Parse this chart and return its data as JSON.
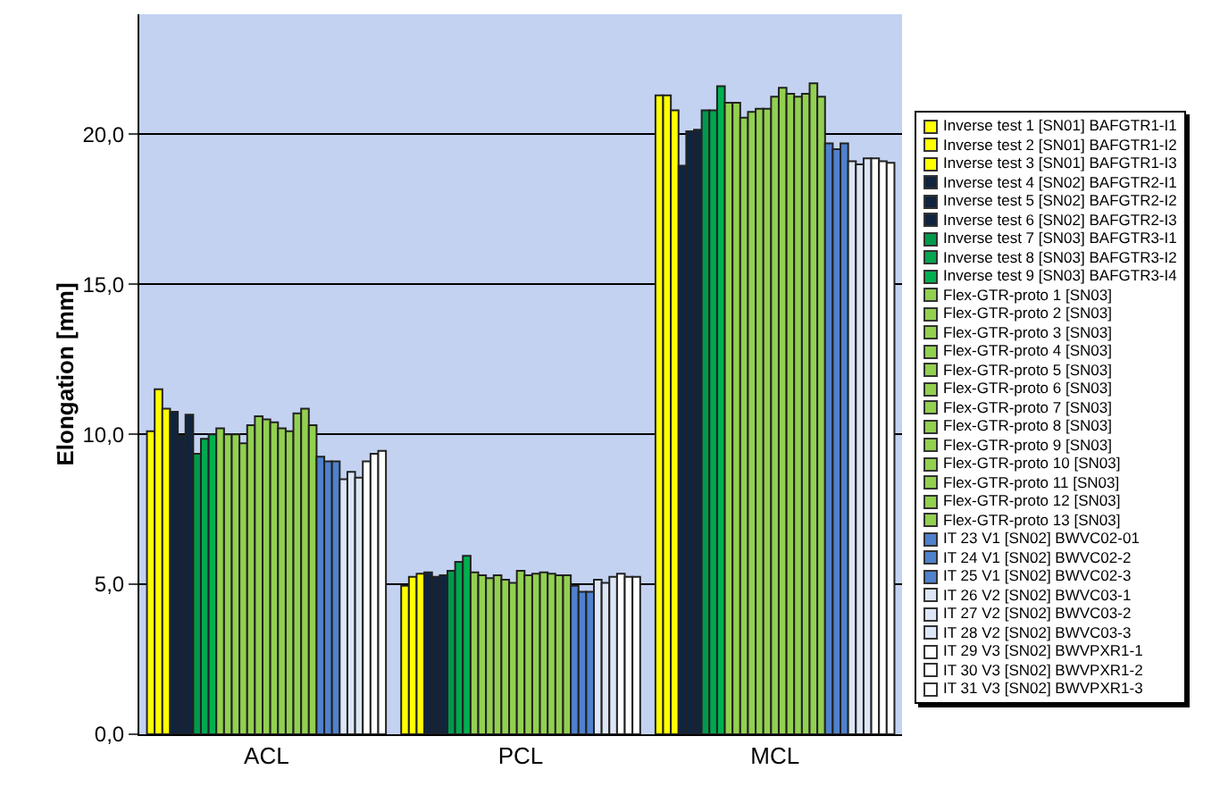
{
  "chart_data": {
    "type": "bar",
    "ylabel": "Elongation [mm]",
    "categories": [
      "ACL",
      "PCL",
      "MCL"
    ],
    "ylim": [
      0,
      24
    ],
    "yticks": [
      {
        "value": 0,
        "label": "0,0"
      },
      {
        "value": 5,
        "label": "5,0"
      },
      {
        "value": 10,
        "label": "10,0"
      },
      {
        "value": 15,
        "label": "15,0"
      },
      {
        "value": 20,
        "label": "20,0"
      }
    ],
    "grid": "y",
    "legend": "right",
    "series": [
      {
        "name": "Inverse test 1 [SN01] BAFGTR1-I1",
        "color": "#ffff00",
        "values": [
          10.1,
          4.95,
          21.3
        ]
      },
      {
        "name": "Inverse test 2 [SN01] BAFGTR1-I2",
        "color": "#ffff00",
        "values": [
          11.5,
          5.25,
          21.3
        ]
      },
      {
        "name": "Inverse test 3 [SN01] BAFGTR1-I3",
        "color": "#ffff00",
        "values": [
          10.85,
          5.35,
          20.8
        ]
      },
      {
        "name": "Inverse test 4 [SN02] BAFGTR2-I1",
        "color": "#10243f",
        "values": [
          10.75,
          5.4,
          18.95
        ]
      },
      {
        "name": "Inverse test 5 [SN02] BAFGTR2-I2",
        "color": "#10243f",
        "values": [
          9.95,
          5.25,
          20.1
        ]
      },
      {
        "name": "Inverse test 6 [SN02] BAFGTR2-I3",
        "color": "#10243f",
        "values": [
          10.65,
          5.3,
          20.15
        ]
      },
      {
        "name": "Inverse test 7 [SN03] BAFGTR3-I1",
        "color": "#00994c",
        "values": [
          9.35,
          5.45,
          20.8
        ]
      },
      {
        "name": "Inverse test 8 [SN03] BAFGTR3-I2",
        "color": "#00a650",
        "values": [
          9.85,
          5.75,
          20.8
        ]
      },
      {
        "name": "Inverse test 9 [SN03] BAFGTR3-I4",
        "color": "#00b050",
        "values": [
          10.0,
          5.95,
          21.6
        ]
      },
      {
        "name": "Flex-GTR-proto  1 [SN03]",
        "color": "#92d050",
        "values": [
          10.2,
          5.4,
          21.05
        ]
      },
      {
        "name": "Flex-GTR-proto  2 [SN03]",
        "color": "#92d050",
        "values": [
          10.0,
          5.3,
          21.05
        ]
      },
      {
        "name": "Flex-GTR-proto  3 [SN03]",
        "color": "#92d050",
        "values": [
          10.0,
          5.2,
          20.55
        ]
      },
      {
        "name": "Flex-GTR-proto  4 [SN03]",
        "color": "#92d050",
        "values": [
          9.7,
          5.3,
          20.75
        ]
      },
      {
        "name": "Flex-GTR-proto  5 [SN03]",
        "color": "#92d050",
        "values": [
          10.3,
          5.15,
          20.85
        ]
      },
      {
        "name": "Flex-GTR-proto  6 [SN03]",
        "color": "#92d050",
        "values": [
          10.6,
          5.05,
          20.85
        ]
      },
      {
        "name": "Flex-GTR-proto  7 [SN03]",
        "color": "#92d050",
        "values": [
          10.5,
          5.45,
          21.25
        ]
      },
      {
        "name": "Flex-GTR-proto  8 [SN03]",
        "color": "#92d050",
        "values": [
          10.4,
          5.3,
          21.55
        ]
      },
      {
        "name": "Flex-GTR-proto  9 [SN03]",
        "color": "#92d050",
        "values": [
          10.2,
          5.35,
          21.35
        ]
      },
      {
        "name": "Flex-GTR-proto  10 [SN03]",
        "color": "#92d050",
        "values": [
          10.1,
          5.4,
          21.25
        ]
      },
      {
        "name": "Flex-GTR-proto  11 [SN03]",
        "color": "#92d050",
        "values": [
          10.7,
          5.35,
          21.35
        ]
      },
      {
        "name": "Flex-GTR-proto  12 [SN03]",
        "color": "#92d050",
        "values": [
          10.85,
          5.3,
          21.7
        ]
      },
      {
        "name": "Flex-GTR-proto  13 [SN03]",
        "color": "#92d050",
        "values": [
          10.3,
          5.3,
          21.25
        ]
      },
      {
        "name": "IT 23 V1 [SN02] BWVC02-01",
        "color": "#4f81cd",
        "values": [
          9.25,
          4.95,
          19.7
        ]
      },
      {
        "name": "IT 24 V1 [SN02] BWVC02-2",
        "color": "#4f81cd",
        "values": [
          9.1,
          4.75,
          19.5
        ]
      },
      {
        "name": "IT 25 V1 [SN02] BWVC02-3",
        "color": "#4f81cd",
        "values": [
          9.1,
          4.75,
          19.7
        ]
      },
      {
        "name": "IT 26 V2 [SN02] BWVC03-1",
        "color": "#dce6f7",
        "values": [
          8.5,
          5.15,
          19.1
        ]
      },
      {
        "name": "IT 27 V2 [SN02] BWVC03-2",
        "color": "#dce6f7",
        "values": [
          8.75,
          5.05,
          19.0
        ]
      },
      {
        "name": "IT 28 V2 [SN02] BWVC03-3",
        "color": "#dce6f7",
        "values": [
          8.55,
          5.25,
          19.2
        ]
      },
      {
        "name": "IT 29 V3 [SN02] BWVPXR1-1",
        "color": "#ffffff",
        "values": [
          9.1,
          5.35,
          19.2
        ]
      },
      {
        "name": "IT 30 V3 [SN02] BWVPXR1-2",
        "color": "#ffffff",
        "values": [
          9.35,
          5.25,
          19.1
        ]
      },
      {
        "name": "IT 31 V3 [SN02] BWVPXR1-3",
        "color": "#ffffff",
        "values": [
          9.45,
          5.25,
          19.05
        ]
      }
    ]
  }
}
